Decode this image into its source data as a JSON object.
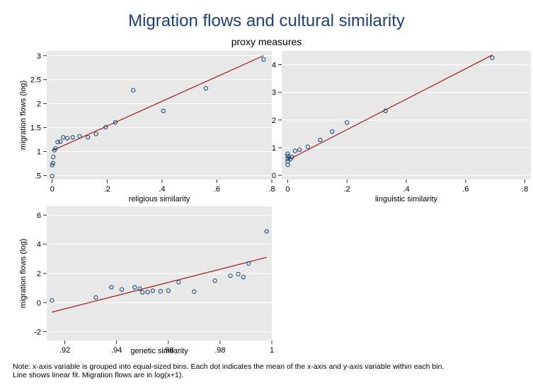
{
  "figure": {
    "title": "Migration flows and cultural similarity",
    "subtitle": "proxy measures",
    "note_line1": "Note: x-axis variable is grouped into equal-sized bins. Each dot indicates the mean of the x-axis and y-axis variable within each bin.",
    "note_line2": "Line shows linear fit. Migration flows are in log(x+1)."
  },
  "colors": {
    "plot_background": "#e8e8e8",
    "grid": "#ffffff",
    "marker": "#1f4e79",
    "fit_line": "#a52a2a",
    "title": "#1f3f78"
  },
  "chart_data": [
    {
      "type": "scatter",
      "id": "religious",
      "xlabel": "religious similarity",
      "ylabel": "migration flows (log)",
      "xlim": [
        -0.02,
        0.8
      ],
      "ylim": [
        0.42,
        3.1
      ],
      "xticks": [
        0,
        0.2,
        0.4,
        0.6,
        0.8
      ],
      "xtick_labels": [
        "0",
        ".2",
        ".4",
        ".6",
        ".8"
      ],
      "yticks": [
        0.5,
        1,
        1.5,
        2,
        2.5,
        3
      ],
      "ytick_labels": [
        ".5",
        "1",
        "1.5",
        "2",
        "2.5",
        "3"
      ],
      "grid": "horizontal",
      "points": [
        [
          0.0,
          0.49
        ],
        [
          0.0,
          0.72
        ],
        [
          0.003,
          0.76
        ],
        [
          0.004,
          0.89
        ],
        [
          0.008,
          1.03
        ],
        [
          0.012,
          1.07
        ],
        [
          0.02,
          1.2
        ],
        [
          0.03,
          1.21
        ],
        [
          0.04,
          1.3
        ],
        [
          0.055,
          1.28
        ],
        [
          0.075,
          1.3
        ],
        [
          0.1,
          1.32
        ],
        [
          0.13,
          1.3
        ],
        [
          0.16,
          1.37
        ],
        [
          0.195,
          1.51
        ],
        [
          0.23,
          1.61
        ],
        [
          0.295,
          2.28
        ],
        [
          0.405,
          1.85
        ],
        [
          0.56,
          2.32
        ],
        [
          0.77,
          2.92
        ]
      ],
      "fit": {
        "x": [
          0.0,
          0.77
        ],
        "y": [
          1.02,
          3.0
        ]
      }
    },
    {
      "type": "scatter",
      "id": "linguistic",
      "xlabel": "linguistic similarity",
      "ylabel": "",
      "xlim": [
        -0.02,
        0.82
      ],
      "ylim": [
        -0.15,
        4.5
      ],
      "xticks": [
        0,
        0.2,
        0.4,
        0.6,
        0.8
      ],
      "xtick_labels": [
        "0",
        ".2",
        ".4",
        ".6",
        ".8"
      ],
      "yticks": [
        0,
        1,
        2,
        3,
        4
      ],
      "ytick_labels": [
        "0",
        "1",
        "2",
        "3",
        "4"
      ],
      "grid": "horizontal",
      "points": [
        [
          0.0,
          0.38
        ],
        [
          0.0,
          0.5
        ],
        [
          0.0,
          0.6
        ],
        [
          0.0,
          0.7
        ],
        [
          0.0,
          0.78
        ],
        [
          0.004,
          0.66
        ],
        [
          0.008,
          0.58
        ],
        [
          0.015,
          0.66
        ],
        [
          0.025,
          0.88
        ],
        [
          0.04,
          0.93
        ],
        [
          0.068,
          1.03
        ],
        [
          0.11,
          1.28
        ],
        [
          0.15,
          1.58
        ],
        [
          0.2,
          1.91
        ],
        [
          0.33,
          2.33
        ],
        [
          0.69,
          4.25
        ]
      ],
      "fit": {
        "x": [
          0.0,
          0.69
        ],
        "y": [
          0.55,
          4.35
        ]
      }
    },
    {
      "type": "scatter",
      "id": "genetic",
      "xlabel": "genetic similarity",
      "ylabel": "migration flows (log)",
      "xlim": [
        0.913,
        1.0
      ],
      "ylim": [
        -2.6,
        6.6
      ],
      "xticks": [
        0.92,
        0.94,
        0.96,
        0.98,
        1.0
      ],
      "xtick_labels": [
        ".92",
        ".94",
        ".96",
        ".98",
        "1"
      ],
      "yticks": [
        -2,
        0,
        2,
        4,
        6
      ],
      "ytick_labels": [
        "-2",
        "0",
        "2",
        "4",
        "6"
      ],
      "grid": "horizontal",
      "points": [
        [
          0.915,
          0.15
        ],
        [
          0.932,
          0.35
        ],
        [
          0.938,
          1.05
        ],
        [
          0.942,
          0.9
        ],
        [
          0.947,
          1.05
        ],
        [
          0.949,
          0.95
        ],
        [
          0.95,
          0.7
        ],
        [
          0.952,
          0.72
        ],
        [
          0.954,
          0.82
        ],
        [
          0.957,
          0.78
        ],
        [
          0.96,
          0.82
        ],
        [
          0.964,
          1.4
        ],
        [
          0.97,
          0.75
        ],
        [
          0.978,
          1.5
        ],
        [
          0.984,
          1.85
        ],
        [
          0.987,
          1.95
        ],
        [
          0.989,
          1.75
        ],
        [
          0.991,
          2.68
        ],
        [
          0.998,
          4.88
        ]
      ],
      "fit": {
        "x": [
          0.915,
          0.998
        ],
        "y": [
          -0.65,
          3.1
        ]
      }
    }
  ]
}
